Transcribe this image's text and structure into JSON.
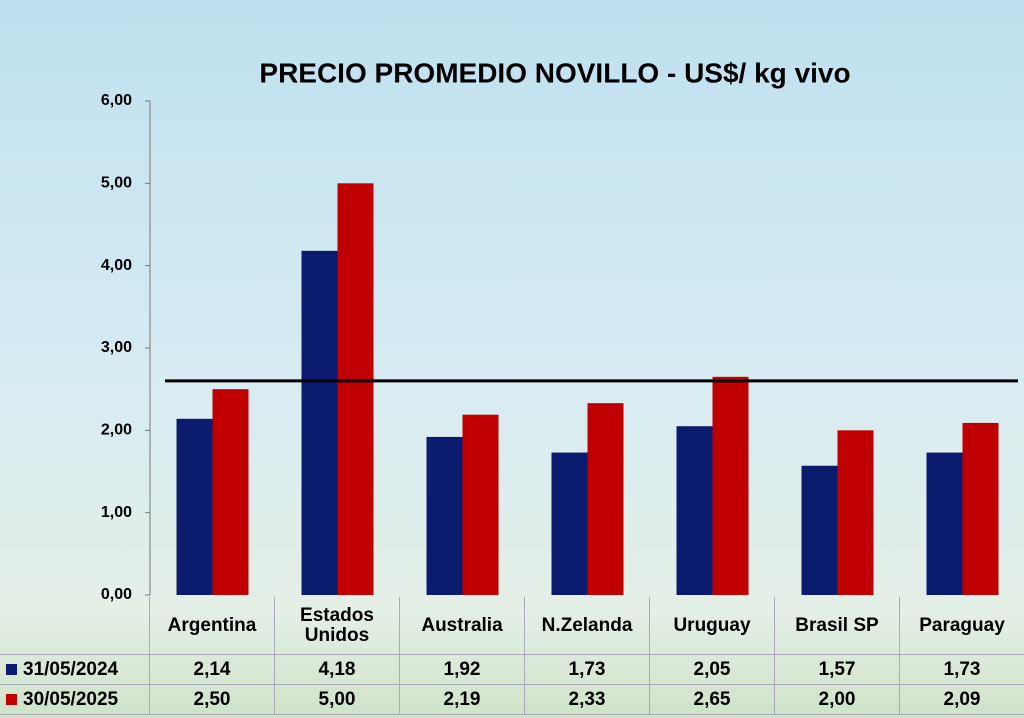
{
  "chart_data": {
    "type": "bar",
    "title": "PRECIO PROMEDIO NOVILLO  - US$/ kg vivo",
    "categories": [
      "Argentina",
      "Estados Unidos",
      "Australia",
      "N.Zelanda",
      "Uruguay",
      "Brasil SP",
      "Paraguay"
    ],
    "series": [
      {
        "name": "31/05/2024",
        "color": "#0b1c6e",
        "values": [
          2.14,
          4.18,
          1.92,
          1.73,
          2.05,
          1.57,
          1.73
        ],
        "value_labels": [
          "2,14",
          "4,18",
          "1,92",
          "1,73",
          "2,05",
          "1,57",
          "1,73"
        ]
      },
      {
        "name": "30/05/2025",
        "color": "#c00000",
        "values": [
          2.5,
          5.0,
          2.19,
          2.33,
          2.65,
          2.0,
          2.09
        ],
        "value_labels": [
          "2,50",
          "5,00",
          "2,19",
          "2,33",
          "2,65",
          "2,00",
          "2,09"
        ]
      }
    ],
    "reference_line": 2.6,
    "ylim": [
      0,
      6
    ],
    "yticks": [
      {
        "value": 0,
        "label": "0,00"
      },
      {
        "value": 1,
        "label": "1,00"
      },
      {
        "value": 2,
        "label": "2,00"
      },
      {
        "value": 3,
        "label": "3,00"
      },
      {
        "value": 4,
        "label": "4,00"
      },
      {
        "value": 5,
        "label": "5,00"
      },
      {
        "value": 6,
        "label": "6,00"
      }
    ]
  }
}
